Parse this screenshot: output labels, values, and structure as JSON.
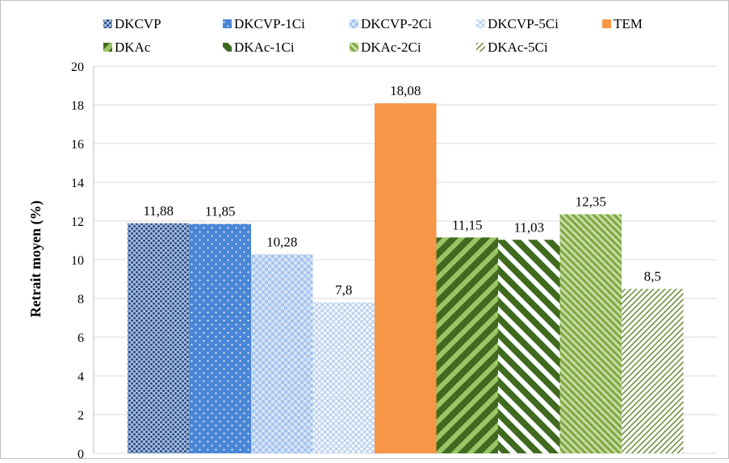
{
  "chart_data": {
    "type": "bar",
    "title": "",
    "xlabel": "",
    "ylabel": "Retrait moyen (%)",
    "ylim": [
      0,
      20
    ],
    "ytick_step": 2,
    "grid": true,
    "legend_position": "top",
    "categories": [
      "DKCVP",
      "DKCVP-1Ci",
      "DKCVP-2Ci",
      "DKCVP-5Ci",
      "TEM",
      "DKAc",
      "DKAc-1Ci",
      "DKAc-2Ci",
      "DKAc-5Ci"
    ],
    "values": [
      11.88,
      11.85,
      10.28,
      7.8,
      18.08,
      11.15,
      11.03,
      12.35,
      8.5
    ],
    "value_labels": [
      "11,88",
      "11,85",
      "10,28",
      "7,8",
      "18,08",
      "11,15",
      "11,03",
      "12,35",
      "8,5"
    ],
    "yticks": [
      "0",
      "2",
      "4",
      "6",
      "8",
      "10",
      "12",
      "14",
      "16",
      "18",
      "20"
    ],
    "legend": [
      {
        "name": "DKCVP",
        "pattern": "dots-dense",
        "color": "#1f3f73"
      },
      {
        "name": "DKCVP-1Ci",
        "pattern": "dots-sparse",
        "color": "#4a86d6"
      },
      {
        "name": "DKCVP-2Ci",
        "pattern": "checker",
        "color": "#a6c4ef"
      },
      {
        "name": "DKCVP-5Ci",
        "pattern": "diag-cross",
        "color": "#c9dbf4"
      },
      {
        "name": "TEM",
        "pattern": "solid",
        "color": "#f79646"
      },
      {
        "name": "DKAc",
        "pattern": "stripe-wide-up",
        "color": "#4f7b28"
      },
      {
        "name": "DKAc-1Ci",
        "pattern": "stripe-wide-down",
        "color": "#4f7b28"
      },
      {
        "name": "DKAc-2Ci",
        "pattern": "stripe-fine-down",
        "color": "#8db351"
      },
      {
        "name": "DKAc-5Ci",
        "pattern": "stripe-thin-up",
        "color": "#7a9a4a"
      }
    ]
  }
}
